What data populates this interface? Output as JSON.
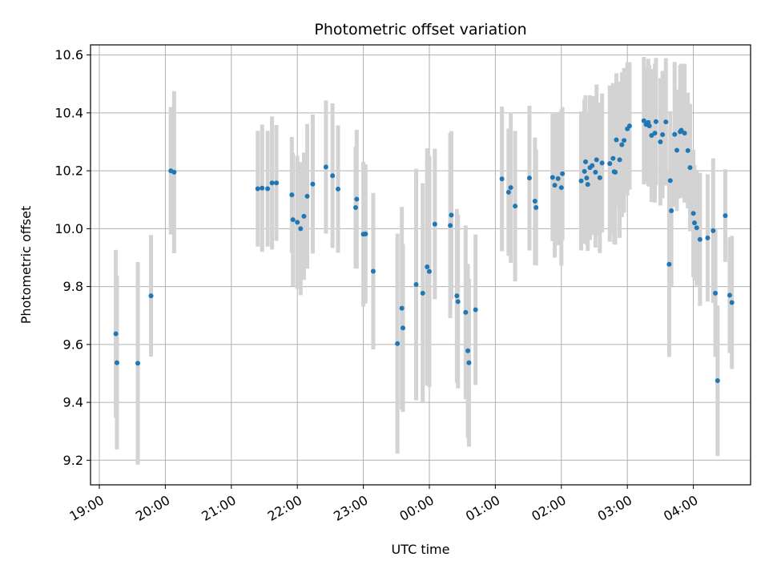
{
  "chart_data": {
    "type": "scatter",
    "title": "Photometric offset variation",
    "xlabel": "UTC time",
    "ylabel": "Photometric offset",
    "xlim": [
      "18:52",
      "04:52"
    ],
    "ylim": [
      9.115,
      10.635
    ],
    "grid": true,
    "error_bar_color": "#d3d3d3",
    "point_color": "#1f77b4",
    "x_ticks": [
      "19:00",
      "20:00",
      "21:00",
      "22:00",
      "23:00",
      "00:00",
      "01:00",
      "02:00",
      "03:00",
      "04:00"
    ],
    "y_ticks": [
      "9.2",
      "9.4",
      "9.6",
      "9.8",
      "10.0",
      "10.2",
      "10.4",
      "10.6"
    ],
    "x": [
      "19:15",
      "19:16",
      "19:35",
      "19:47",
      "20:05",
      "20:08",
      "21:24",
      "21:28",
      "21:33",
      "21:37",
      "21:41",
      "21:55",
      "21:56",
      "22:00",
      "22:03",
      "22:06",
      "22:09",
      "22:14",
      "22:26",
      "22:32",
      "22:37",
      "22:53",
      "22:54",
      "23:00",
      "23:02",
      "23:09",
      "23:31",
      "23:35",
      "23:36",
      "23:48",
      "23:54",
      "23:58",
      "24:00",
      "24:05",
      "24:19",
      "24:20",
      "24:25",
      "24:26",
      "24:33",
      "24:35",
      "24:36",
      "24:42",
      "25:06",
      "25:12",
      "25:14",
      "25:18",
      "25:31",
      "25:36",
      "25:37",
      "25:52",
      "25:54",
      "25:57",
      "26:00",
      "26:01",
      "26:18",
      "26:21",
      "26:22",
      "26:23",
      "26:24",
      "26:26",
      "26:28",
      "26:31",
      "26:32",
      "26:35",
      "26:37",
      "26:44",
      "26:47",
      "26:48",
      "26:49",
      "26:50",
      "26:53",
      "26:55",
      "26:57",
      "27:00",
      "27:02",
      "27:15",
      "27:17",
      "27:19",
      "27:20",
      "27:22",
      "27:25",
      "27:26",
      "27:30",
      "27:32",
      "27:35",
      "27:38",
      "27:39",
      "27:40",
      "27:43",
      "27:45",
      "27:48",
      "27:49",
      "27:52",
      "27:55",
      "27:57",
      "28:00",
      "28:01",
      "28:03",
      "28:06",
      "28:13",
      "28:18",
      "28:20",
      "28:22",
      "28:29",
      "28:33",
      "28:35"
    ],
    "y": [
      9.637,
      9.537,
      9.535,
      9.768,
      10.2,
      10.195,
      10.138,
      10.14,
      10.138,
      10.158,
      10.158,
      10.117,
      10.031,
      10.022,
      10.0,
      10.043,
      10.112,
      10.154,
      10.213,
      10.183,
      10.137,
      10.073,
      10.102,
      9.981,
      9.982,
      9.853,
      9.603,
      9.725,
      9.657,
      9.807,
      9.777,
      9.868,
      9.852,
      10.016,
      10.011,
      10.047,
      9.768,
      9.748,
      9.711,
      9.578,
      9.537,
      9.72,
      10.172,
      10.126,
      10.142,
      10.078,
      10.175,
      10.095,
      10.073,
      10.177,
      10.15,
      10.173,
      10.142,
      10.19,
      10.165,
      10.198,
      10.231,
      10.175,
      10.153,
      10.211,
      10.218,
      10.195,
      10.238,
      10.176,
      10.227,
      10.225,
      10.243,
      10.197,
      10.195,
      10.307,
      10.238,
      10.29,
      10.305,
      10.345,
      10.355,
      10.373,
      10.36,
      10.367,
      10.355,
      10.322,
      10.33,
      10.37,
      10.3,
      10.325,
      10.369,
      9.877,
      10.166,
      10.062,
      10.326,
      10.271,
      10.335,
      10.34,
      10.33,
      10.27,
      10.211,
      10.053,
      10.02,
      10.003,
      9.963,
      9.968,
      9.993,
      9.777,
      9.475,
      10.045,
      9.77,
      9.745
    ],
    "yerr": [
      0.29,
      0.3,
      0.35,
      0.21,
      0.22,
      0.28,
      0.2,
      0.22,
      0.2,
      0.23,
      0.2,
      0.2,
      0.23,
      0.23,
      0.23,
      0.22,
      0.25,
      0.24,
      0.23,
      0.25,
      0.22,
      0.21,
      0.24,
      0.25,
      0.24,
      0.27,
      0.38,
      0.35,
      0.29,
      0.4,
      0.38,
      0.41,
      0.4,
      0.26,
      0.32,
      0.29,
      0.3,
      0.3,
      0.3,
      0.3,
      0.29,
      0.26,
      0.25,
      0.22,
      0.26,
      0.26,
      0.25,
      0.22,
      0.2,
      0.22,
      0.25,
      0.23,
      0.27,
      0.23,
      0.24,
      0.25,
      0.23,
      0.23,
      0.23,
      0.25,
      0.24,
      0.26,
      0.26,
      0.26,
      0.24,
      0.27,
      0.26,
      0.25,
      0.25,
      0.23,
      0.27,
      0.25,
      0.25,
      0.23,
      0.22,
      0.22,
      0.2,
      0.22,
      0.21,
      0.23,
      0.24,
      0.22,
      0.22,
      0.22,
      0.22,
      0.32,
      0.24,
      0.26,
      0.25,
      0.21,
      0.23,
      0.23,
      0.24,
      0.2,
      0.22,
      0.22,
      0.2,
      0.2,
      0.23,
      0.22,
      0.25,
      0.22,
      0.26,
      0.16,
      0.2,
      0.23
    ]
  }
}
